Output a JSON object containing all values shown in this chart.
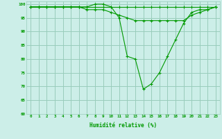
{
  "xlabel": "Humidité relative (%)",
  "bg_color": "#cceee8",
  "grid_color": "#99ccbb",
  "line_color": "#009900",
  "ylim": [
    60,
    101
  ],
  "xlim": [
    -0.5,
    23.5
  ],
  "yticks": [
    60,
    65,
    70,
    75,
    80,
    85,
    90,
    95,
    100
  ],
  "xticks": [
    0,
    1,
    2,
    3,
    4,
    5,
    6,
    7,
    8,
    9,
    10,
    11,
    12,
    13,
    14,
    15,
    16,
    17,
    18,
    19,
    20,
    21,
    22,
    23
  ],
  "series1": [
    99,
    99,
    99,
    99,
    99,
    99,
    99,
    99,
    99,
    99,
    99,
    99,
    99,
    99,
    99,
    99,
    99,
    99,
    99,
    99,
    99,
    99,
    99,
    99
  ],
  "series2": [
    99,
    99,
    99,
    99,
    99,
    99,
    99,
    98,
    98,
    98,
    97,
    96,
    95,
    94,
    94,
    94,
    94,
    94,
    94,
    94,
    96,
    97,
    98,
    99
  ],
  "series3": [
    99,
    99,
    99,
    99,
    99,
    99,
    99,
    99,
    100,
    100,
    99,
    95,
    81,
    80,
    69,
    71,
    75,
    81,
    87,
    93,
    97,
    98,
    98,
    99
  ]
}
